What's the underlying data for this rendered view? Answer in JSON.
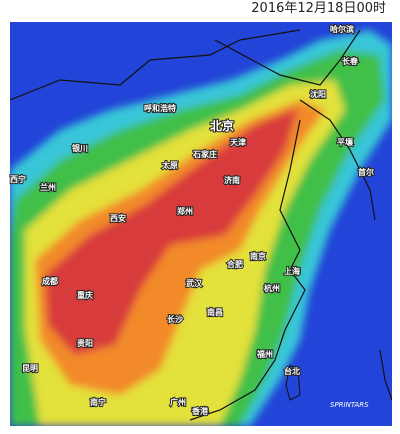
{
  "header": {
    "timestamp": "2016年12月18日00时"
  },
  "cities": [
    "哈尔滨",
    "长春",
    "沈阳",
    "呼和浩特",
    "北京",
    "天津",
    "石家庄",
    "银川",
    "太原",
    "济南",
    "平壤",
    "首尔",
    "西宁",
    "兰州",
    "郑州",
    "西安",
    "南京",
    "合肥",
    "上海",
    "成都",
    "武汉",
    "杭州",
    "重庆",
    "南昌",
    "长沙",
    "贵阳",
    "福州",
    "台北",
    "昆明",
    "南宁",
    "广州",
    "香港"
  ],
  "logo": "SPRINTARS"
}
